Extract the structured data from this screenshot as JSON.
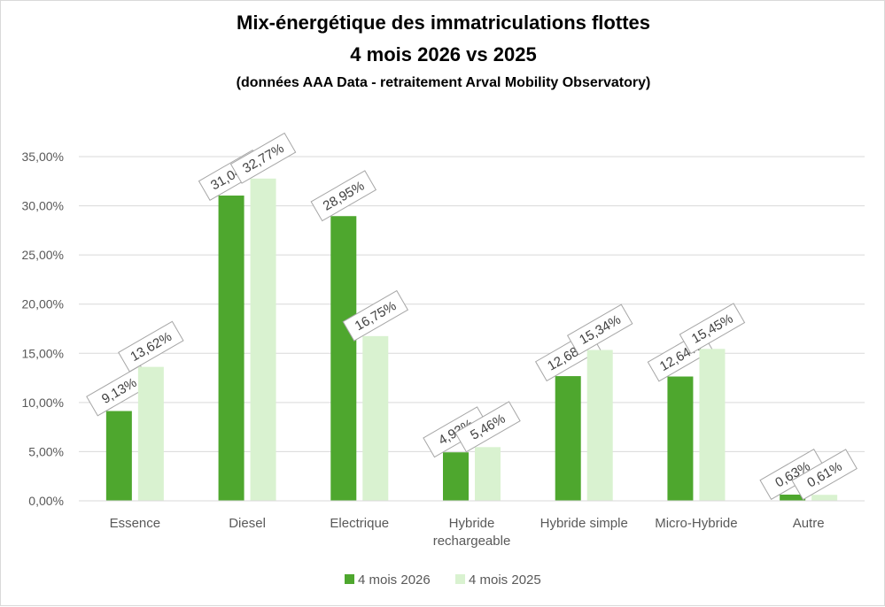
{
  "chart_data": {
    "type": "bar",
    "title": [
      "Mix-énergétique des immatriculations  flottes",
      "4 mois 2026 vs 2025"
    ],
    "subtitle": "(données AAA Data - retraitement Arval Mobility Observatory)",
    "categories": [
      [
        "Essence"
      ],
      [
        "Diesel"
      ],
      [
        "Electrique"
      ],
      [
        "Hybride",
        "rechargeable"
      ],
      [
        "Hybride simple"
      ],
      [
        "Micro-Hybride"
      ],
      [
        "Autre"
      ]
    ],
    "series": [
      {
        "name": "4 mois 2026",
        "color": "#4ea72e",
        "values": [
          9.13,
          31.04,
          28.95,
          4.93,
          12.68,
          12.64,
          0.63
        ],
        "labels": [
          "9,13%",
          "31,04%",
          "28,95%",
          "4,93%",
          "12,68%",
          "12,64%",
          "0,63%"
        ]
      },
      {
        "name": "4 mois 2025",
        "color": "#d9f2d0",
        "values": [
          13.62,
          32.77,
          16.75,
          5.46,
          15.34,
          15.45,
          0.61
        ],
        "labels": [
          "13,62%",
          "32,77%",
          "16,75%",
          "5,46%",
          "15,34%",
          "15,45%",
          "0,61%"
        ]
      }
    ],
    "ylim": [
      0,
      35
    ],
    "yticks": [
      0,
      5,
      10,
      15,
      20,
      25,
      30,
      35
    ],
    "ytick_labels": [
      "0,00%",
      "5,00%",
      "10,00%",
      "15,00%",
      "20,00%",
      "25,00%",
      "30,00%",
      "35,00%"
    ],
    "grid": true,
    "legend": "bottom",
    "data_label_style": "rotated-boxed"
  }
}
